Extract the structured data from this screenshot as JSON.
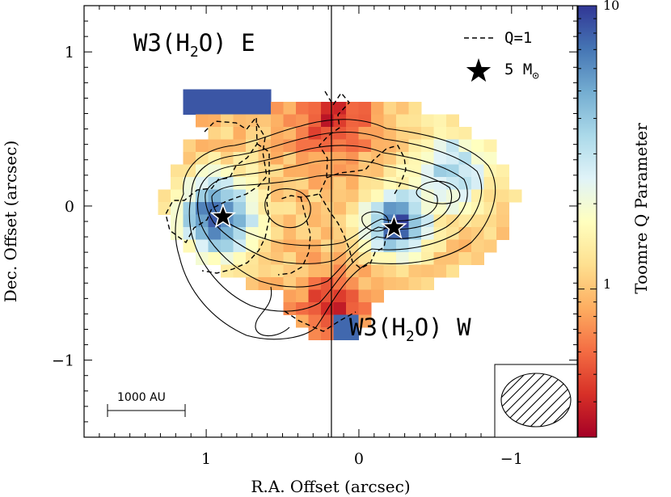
{
  "chart_data": {
    "type": "heatmap",
    "xlabel": "R.A. Offset (arcsec)",
    "ylabel": "Dec. Offset (arcsec)",
    "xlim": [
      1.8,
      -1.43
    ],
    "ylim": [
      -1.5,
      1.3
    ],
    "x_ticks": [
      {
        "value": 1,
        "label": "1"
      },
      {
        "value": 0,
        "label": "0"
      },
      {
        "value": -1,
        "label": "−1"
      }
    ],
    "y_ticks": [
      {
        "value": 1,
        "label": "1"
      },
      {
        "value": 0,
        "label": "0"
      },
      {
        "value": -1,
        "label": "−1"
      }
    ],
    "colorbar": {
      "label": "Toomre Q Parameter",
      "scale": "log",
      "range": [
        0.3,
        10
      ],
      "ticks": [
        {
          "value": 10,
          "label": "10"
        },
        {
          "value": 1,
          "label": "1"
        }
      ]
    },
    "annotations": {
      "east_label": "W3(H",
      "east_sub": "2",
      "east_suffix": "O) E",
      "west_label": "W3(H",
      "west_sub": "2",
      "west_suffix": "O) W",
      "legend_q": "Q=1",
      "legend_star": "5 M",
      "legend_star_sub": "⊙",
      "scalebar": "1000 AU"
    },
    "sources": [
      {
        "name": "W3(H2O) E",
        "x": 0.89,
        "y": -0.07
      },
      {
        "name": "W3(H2O) W",
        "x": -0.23,
        "y": -0.14
      }
    ],
    "vertical_line_x": 0.18,
    "colors": {
      "low": "#a50026",
      "mid": "#ffffbf",
      "high": "#313695"
    }
  }
}
